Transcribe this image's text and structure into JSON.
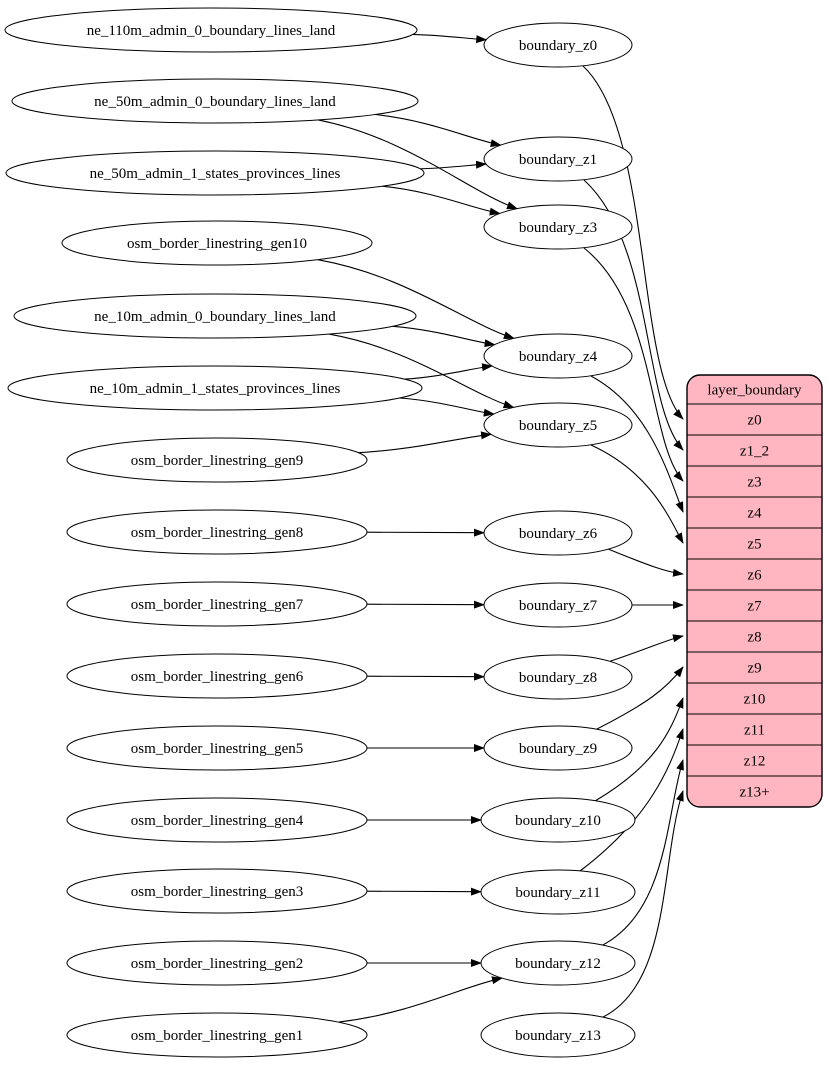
{
  "diagram": {
    "background": "#ffffff",
    "edge_color": "#000000",
    "node": {
      "fill": "#ffffff",
      "stroke": "#000000",
      "text_color": "#000000"
    },
    "sources": [
      {
        "id": "ne_110m_admin_0_boundary_lines_land",
        "label": "ne_110m_admin_0_boundary_lines_land"
      },
      {
        "id": "ne_50m_admin_0_boundary_lines_land",
        "label": "ne_50m_admin_0_boundary_lines_land"
      },
      {
        "id": "ne_50m_admin_1_states_provinces_lines",
        "label": "ne_50m_admin_1_states_provinces_lines"
      },
      {
        "id": "osm_border_linestring_gen10",
        "label": "osm_border_linestring_gen10"
      },
      {
        "id": "ne_10m_admin_0_boundary_lines_land",
        "label": "ne_10m_admin_0_boundary_lines_land"
      },
      {
        "id": "ne_10m_admin_1_states_provinces_lines",
        "label": "ne_10m_admin_1_states_provinces_lines"
      },
      {
        "id": "osm_border_linestring_gen9",
        "label": "osm_border_linestring_gen9"
      },
      {
        "id": "osm_border_linestring_gen8",
        "label": "osm_border_linestring_gen8"
      },
      {
        "id": "osm_border_linestring_gen7",
        "label": "osm_border_linestring_gen7"
      },
      {
        "id": "osm_border_linestring_gen6",
        "label": "osm_border_linestring_gen6"
      },
      {
        "id": "osm_border_linestring_gen5",
        "label": "osm_border_linestring_gen5"
      },
      {
        "id": "osm_border_linestring_gen4",
        "label": "osm_border_linestring_gen4"
      },
      {
        "id": "osm_border_linestring_gen3",
        "label": "osm_border_linestring_gen3"
      },
      {
        "id": "osm_border_linestring_gen2",
        "label": "osm_border_linestring_gen2"
      },
      {
        "id": "osm_border_linestring_gen1",
        "label": "osm_border_linestring_gen1"
      }
    ],
    "stages": [
      {
        "id": "boundary_z0",
        "label": "boundary_z0"
      },
      {
        "id": "boundary_z1",
        "label": "boundary_z1"
      },
      {
        "id": "boundary_z3",
        "label": "boundary_z3"
      },
      {
        "id": "boundary_z4",
        "label": "boundary_z4"
      },
      {
        "id": "boundary_z5",
        "label": "boundary_z5"
      },
      {
        "id": "boundary_z6",
        "label": "boundary_z6"
      },
      {
        "id": "boundary_z7",
        "label": "boundary_z7"
      },
      {
        "id": "boundary_z8",
        "label": "boundary_z8"
      },
      {
        "id": "boundary_z9",
        "label": "boundary_z9"
      },
      {
        "id": "boundary_z10",
        "label": "boundary_z10"
      },
      {
        "id": "boundary_z11",
        "label": "boundary_z11"
      },
      {
        "id": "boundary_z12",
        "label": "boundary_z12"
      },
      {
        "id": "boundary_z13",
        "label": "boundary_z13"
      }
    ],
    "table": {
      "title": "layer_boundary",
      "fill": "#ffb6c1",
      "stroke": "#000000",
      "rows": [
        "z0",
        "z1_2",
        "z3",
        "z4",
        "z5",
        "z6",
        "z7",
        "z8",
        "z9",
        "z10",
        "z11",
        "z12",
        "z13+"
      ]
    },
    "edges": [
      {
        "from": "ne_110m_admin_0_boundary_lines_land",
        "to": "boundary_z0"
      },
      {
        "from": "ne_50m_admin_0_boundary_lines_land",
        "to": "boundary_z1"
      },
      {
        "from": "ne_50m_admin_0_boundary_lines_land",
        "to": "boundary_z3"
      },
      {
        "from": "ne_50m_admin_1_states_provinces_lines",
        "to": "boundary_z1"
      },
      {
        "from": "ne_50m_admin_1_states_provinces_lines",
        "to": "boundary_z3"
      },
      {
        "from": "osm_border_linestring_gen10",
        "to": "boundary_z4"
      },
      {
        "from": "ne_10m_admin_0_boundary_lines_land",
        "to": "boundary_z4"
      },
      {
        "from": "ne_10m_admin_0_boundary_lines_land",
        "to": "boundary_z5"
      },
      {
        "from": "ne_10m_admin_1_states_provinces_lines",
        "to": "boundary_z4"
      },
      {
        "from": "ne_10m_admin_1_states_provinces_lines",
        "to": "boundary_z5"
      },
      {
        "from": "osm_border_linestring_gen9",
        "to": "boundary_z5"
      },
      {
        "from": "osm_border_linestring_gen8",
        "to": "boundary_z6"
      },
      {
        "from": "osm_border_linestring_gen7",
        "to": "boundary_z7"
      },
      {
        "from": "osm_border_linestring_gen6",
        "to": "boundary_z8"
      },
      {
        "from": "osm_border_linestring_gen5",
        "to": "boundary_z9"
      },
      {
        "from": "osm_border_linestring_gen4",
        "to": "boundary_z10"
      },
      {
        "from": "osm_border_linestring_gen3",
        "to": "boundary_z11"
      },
      {
        "from": "osm_border_linestring_gen2",
        "to": "boundary_z12"
      },
      {
        "from": "osm_border_linestring_gen1",
        "to": "boundary_z12"
      },
      {
        "from": "boundary_z0",
        "to": "row:z0"
      },
      {
        "from": "boundary_z1",
        "to": "row:z1_2"
      },
      {
        "from": "boundary_z3",
        "to": "row:z3"
      },
      {
        "from": "boundary_z4",
        "to": "row:z4"
      },
      {
        "from": "boundary_z5",
        "to": "row:z5"
      },
      {
        "from": "boundary_z6",
        "to": "row:z6"
      },
      {
        "from": "boundary_z7",
        "to": "row:z7"
      },
      {
        "from": "boundary_z8",
        "to": "row:z8"
      },
      {
        "from": "boundary_z9",
        "to": "row:z9"
      },
      {
        "from": "boundary_z10",
        "to": "row:z10"
      },
      {
        "from": "boundary_z11",
        "to": "row:z11"
      },
      {
        "from": "boundary_z12",
        "to": "row:z12"
      },
      {
        "from": "boundary_z13",
        "to": "row:z13+"
      }
    ]
  }
}
